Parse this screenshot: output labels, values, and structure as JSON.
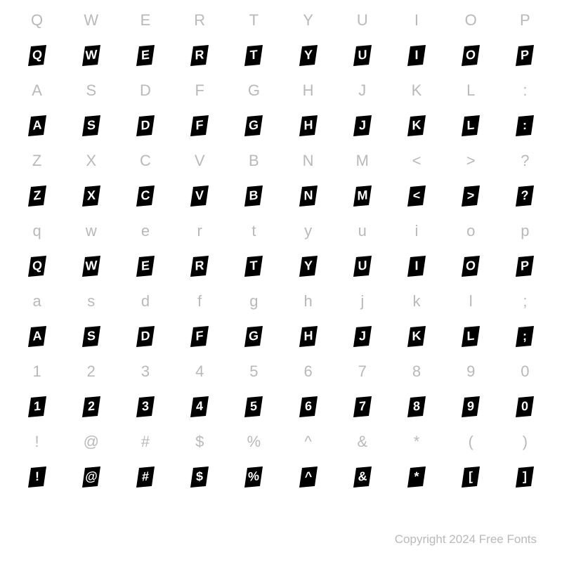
{
  "background_color": "#ffffff",
  "label_color": "#b9b9b9",
  "glyph_bg": "#000000",
  "glyph_fg": "#ffffff",
  "label_fontsize": 22,
  "glyph_fontsize": 18,
  "copyright": "Copyright 2024 Free Fonts",
  "rows": [
    {
      "type": "label",
      "cells": [
        "Q",
        "W",
        "E",
        "R",
        "T",
        "Y",
        "U",
        "I",
        "O",
        "P"
      ]
    },
    {
      "type": "glyph",
      "cells": [
        "Q",
        "W",
        "E",
        "R",
        "T",
        "Y",
        "U",
        "I",
        "O",
        "P"
      ]
    },
    {
      "type": "label",
      "cells": [
        "A",
        "S",
        "D",
        "F",
        "G",
        "H",
        "J",
        "K",
        "L",
        ":"
      ]
    },
    {
      "type": "glyph",
      "cells": [
        "A",
        "S",
        "D",
        "F",
        "G",
        "H",
        "J",
        "K",
        "L",
        ":"
      ]
    },
    {
      "type": "label",
      "cells": [
        "Z",
        "X",
        "C",
        "V",
        "B",
        "N",
        "M",
        "<",
        ">",
        "?"
      ]
    },
    {
      "type": "glyph",
      "cells": [
        "Z",
        "X",
        "C",
        "V",
        "B",
        "N",
        "M",
        "<",
        ">",
        "?"
      ]
    },
    {
      "type": "label",
      "cells": [
        "q",
        "w",
        "e",
        "r",
        "t",
        "y",
        "u",
        "i",
        "o",
        "p"
      ]
    },
    {
      "type": "glyph",
      "cells": [
        "Q",
        "W",
        "E",
        "R",
        "T",
        "Y",
        "U",
        "I",
        "O",
        "P"
      ]
    },
    {
      "type": "label",
      "cells": [
        "a",
        "s",
        "d",
        "f",
        "g",
        "h",
        "j",
        "k",
        "l",
        ";"
      ]
    },
    {
      "type": "glyph",
      "cells": [
        "A",
        "S",
        "D",
        "F",
        "G",
        "H",
        "J",
        "K",
        "L",
        ";"
      ]
    },
    {
      "type": "label",
      "cells": [
        "1",
        "2",
        "3",
        "4",
        "5",
        "6",
        "7",
        "8",
        "9",
        "0"
      ]
    },
    {
      "type": "glyph",
      "cells": [
        "1",
        "2",
        "3",
        "4",
        "5",
        "6",
        "7",
        "8",
        "9",
        "0"
      ]
    },
    {
      "type": "label",
      "cells": [
        "!",
        "@",
        "#",
        "$",
        "%",
        "^",
        "&",
        "*",
        "(",
        ")"
      ]
    },
    {
      "type": "glyph",
      "cells": [
        "!",
        "@",
        "#",
        "$",
        "%",
        "^",
        "&",
        "*",
        "[",
        "]"
      ]
    }
  ]
}
